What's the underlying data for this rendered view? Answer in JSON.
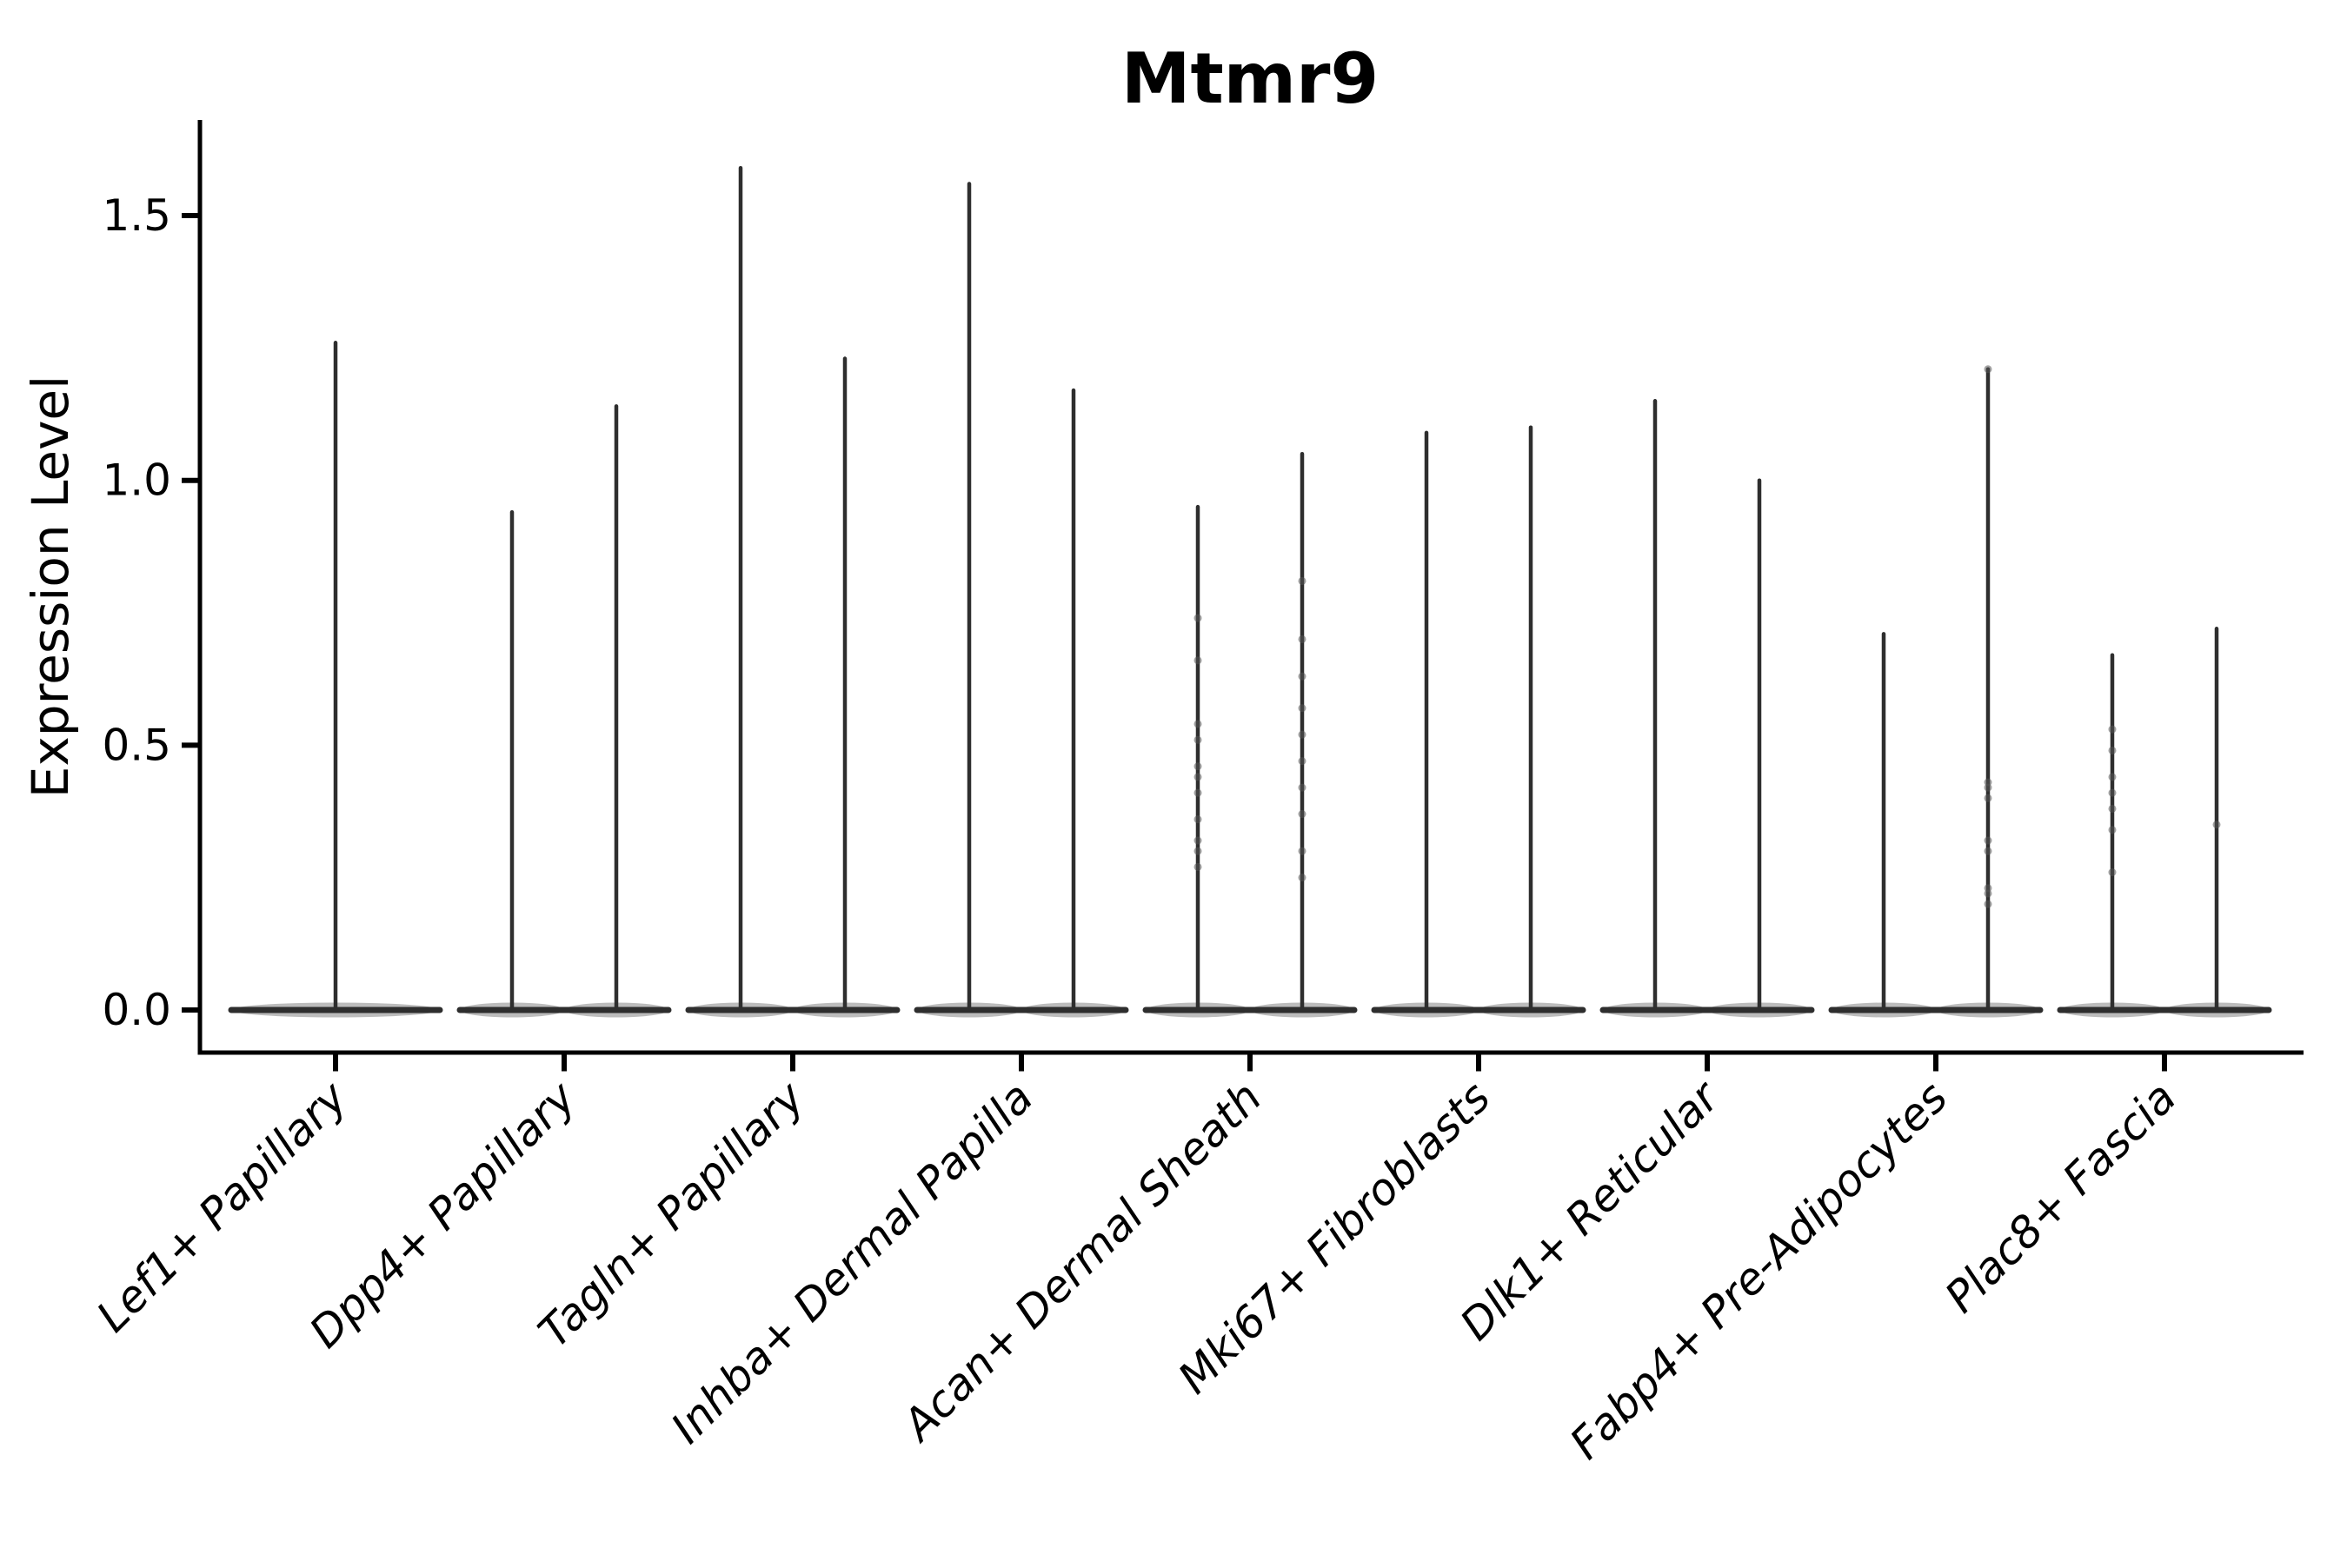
{
  "chart_data": {
    "type": "violin",
    "title": "Mtmr9",
    "ylabel": "Expression Level",
    "xlabel": "",
    "grid": false,
    "legend_position": "none",
    "ylim": [
      -0.08,
      1.68
    ],
    "ytick_values": [
      0.0,
      0.5,
      1.0,
      1.5
    ],
    "ytick_labels": [
      "0.0",
      "0.5",
      "1.0",
      "1.5"
    ],
    "categories": [
      "Lef1+ Papillary",
      "Dpp4+ Papillary",
      "Tagln+ Papillary",
      "Inhba+ Dermal Papilla",
      "Acan+ Dermal Sheath",
      "Mki67+ Fibroblasts",
      "Dlk1+ Reticular",
      "Fabp4+ Pre-Adipocytes",
      "Plac8+ Fascia"
    ],
    "description": "Each category shows violin(s) collapsed to a flat lens at expression 0 with a thin spike rising to the maximum expression value; small jitter points are visible on some spikes.",
    "groups": [
      {
        "category": "Lef1+ Papillary",
        "violins": [
          {
            "side": "center",
            "max": 1.26,
            "points": []
          }
        ]
      },
      {
        "category": "Dpp4+ Papillary",
        "violins": [
          {
            "side": "left",
            "max": 0.94,
            "points": []
          },
          {
            "side": "right",
            "max": 1.14,
            "points": []
          }
        ]
      },
      {
        "category": "Tagln+ Papillary",
        "violins": [
          {
            "side": "left",
            "max": 1.59,
            "points": []
          },
          {
            "side": "right",
            "max": 1.23,
            "points": []
          }
        ]
      },
      {
        "category": "Inhba+ Dermal Papilla",
        "violins": [
          {
            "side": "left",
            "max": 1.56,
            "points": []
          },
          {
            "side": "right",
            "max": 1.17,
            "points": []
          }
        ]
      },
      {
        "category": "Acan+ Dermal Sheath",
        "violins": [
          {
            "side": "left",
            "max": 0.95,
            "points": [
              0.74,
              0.66,
              0.54,
              0.51,
              0.46,
              0.44,
              0.41,
              0.36,
              0.32,
              0.3,
              0.27
            ]
          },
          {
            "side": "right",
            "max": 1.05,
            "points": [
              0.81,
              0.7,
              0.63,
              0.57,
              0.52,
              0.47,
              0.42,
              0.37,
              0.3,
              0.25
            ]
          }
        ]
      },
      {
        "category": "Mki67+ Fibroblasts",
        "violins": [
          {
            "side": "left",
            "max": 1.09,
            "points": []
          },
          {
            "side": "right",
            "max": 1.1,
            "points": []
          }
        ]
      },
      {
        "category": "Dlk1+ Reticular",
        "violins": [
          {
            "side": "left",
            "max": 1.15,
            "points": []
          },
          {
            "side": "right",
            "max": 1.0,
            "points": []
          }
        ]
      },
      {
        "category": "Fabp4+ Pre-Adipocytes",
        "violins": [
          {
            "side": "left",
            "max": 0.71,
            "points": []
          },
          {
            "side": "right",
            "max": 1.21,
            "points": [
              1.21,
              0.43,
              0.42,
              0.4,
              0.32,
              0.3,
              0.23,
              0.22,
              0.2
            ]
          }
        ]
      },
      {
        "category": "Plac8+ Fascia",
        "violins": [
          {
            "side": "left",
            "max": 0.67,
            "points": [
              0.53,
              0.49,
              0.44,
              0.41,
              0.38,
              0.34,
              0.26
            ]
          },
          {
            "side": "right",
            "max": 0.72,
            "points": [
              0.35
            ]
          }
        ]
      }
    ],
    "colors": {
      "violin_line": "#2e2e2e",
      "jitter_point": "#555555",
      "axis": "#000000",
      "text": "#000000",
      "background": "#ffffff"
    }
  }
}
